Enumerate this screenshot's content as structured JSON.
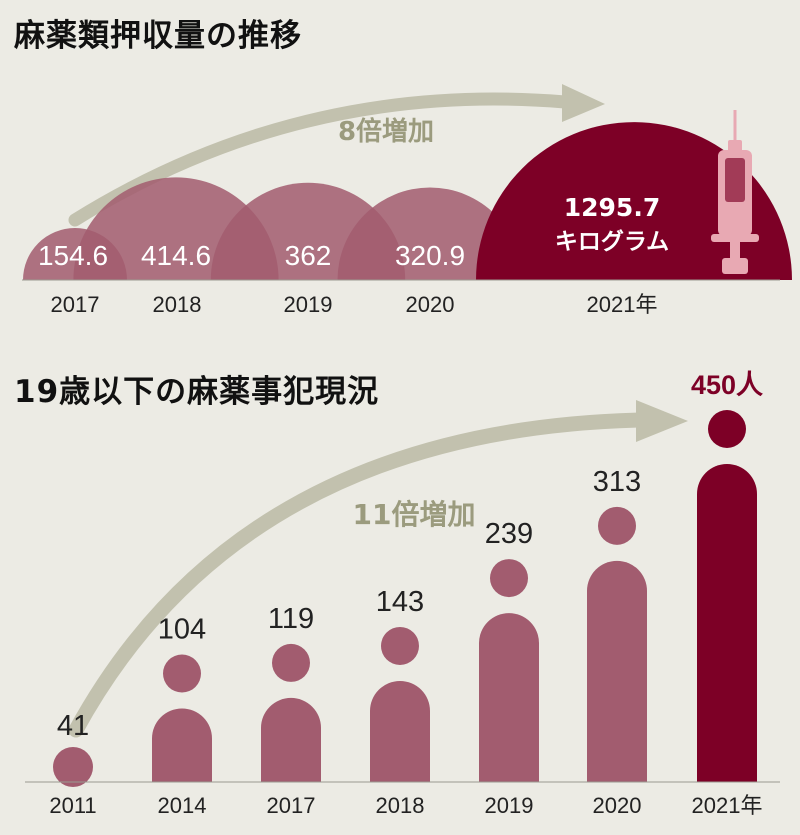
{
  "colors": {
    "background": "#ecebe4",
    "bar_regular": "#a25c6f",
    "bar_highlight": "#7d0026",
    "arrow": "#c2c1ae",
    "growth_text": "#9b9b7e",
    "label_dark": "#222222",
    "label_light": "#ffffff",
    "syringe": "#e8a9b3"
  },
  "chart_data": [
    {
      "type": "bar",
      "title": "麻薬類押収量の推移",
      "categories": [
        "2017",
        "2018",
        "2019",
        "2020",
        "2021年"
      ],
      "values": [
        154.6,
        414.6,
        362,
        320.9,
        1295.7
      ],
      "value_labels": [
        "154.6",
        "414.6",
        "362",
        "320.9",
        "1295.7"
      ],
      "unit_label": "キログラム",
      "growth_annotation": "8倍増加",
      "highlight_index": 4,
      "icon": "syringe-icon"
    },
    {
      "type": "bar",
      "title": "19歳以下の麻薬事犯現況",
      "categories": [
        "2011",
        "2014",
        "2017",
        "2018",
        "2019",
        "2020",
        "2021年"
      ],
      "values": [
        41,
        104,
        119,
        143,
        239,
        313,
        450
      ],
      "value_labels": [
        "41",
        "104",
        "119",
        "143",
        "239",
        "313",
        "450人"
      ],
      "growth_annotation": "11倍増加",
      "highlight_index": 6,
      "icon": "person-icon"
    }
  ]
}
